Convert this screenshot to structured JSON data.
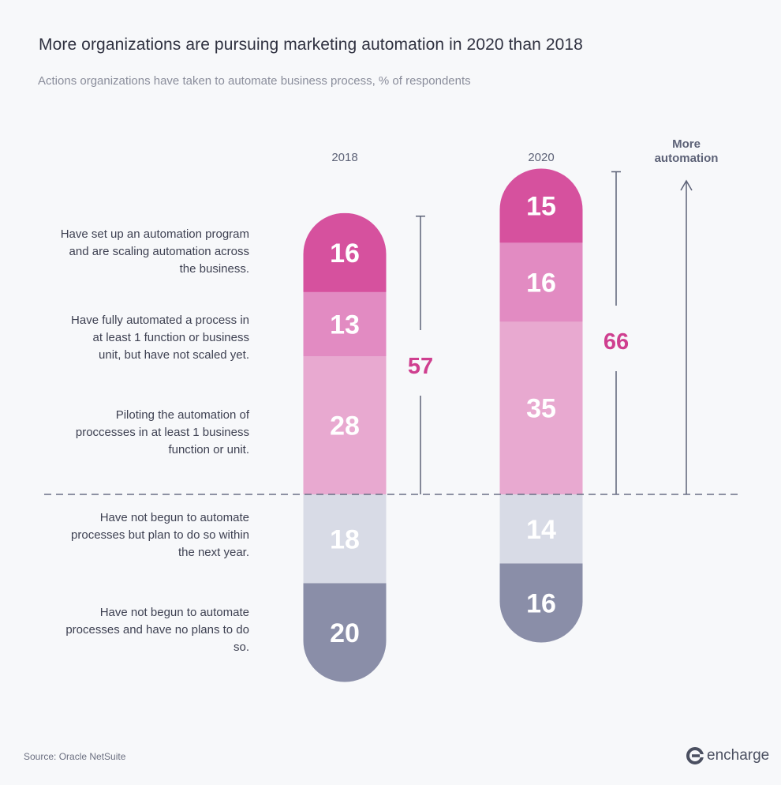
{
  "header": {
    "title": "More organizations are pursuing marketing automation in 2020 than 2018",
    "subtitle": "Actions organizations have taken to automate business process, % of respondents"
  },
  "footer": {
    "source": "Source: Oracle NetSuite",
    "brand": "encharge"
  },
  "chart_data": {
    "type": "bar",
    "stacked": true,
    "categories": [
      "2018",
      "2020"
    ],
    "series": [
      {
        "name": "Have set up an automation program and are scaling automation across the business.",
        "values": [
          16,
          15
        ],
        "color": "#d6519e"
      },
      {
        "name": "Have fully automated a process in at least 1 function or business unit, but have not scaled yet.",
        "values": [
          13,
          16
        ],
        "color": "#e28bc2"
      },
      {
        "name": "Piloting the automation of proccesses in at least 1 business function or unit.",
        "values": [
          28,
          35
        ],
        "color": "#e8a9d0"
      },
      {
        "name": "Have not begun to automate processes but plan to do so within the next year.",
        "values": [
          18,
          14
        ],
        "color": "#d8dbe6"
      },
      {
        "name": "Have not begun to automate processes and have no plans to do so.",
        "values": [
          20,
          16
        ],
        "color": "#8a8ea8"
      }
    ],
    "totals": [
      {
        "category": "2018",
        "value": "57"
      },
      {
        "category": "2020",
        "value": "66"
      }
    ],
    "arrow_label": "More automation",
    "colors": {
      "total_label": "#cf3f8f",
      "axis": "#5d6277",
      "dashed_line": "#6a6f86"
    }
  }
}
